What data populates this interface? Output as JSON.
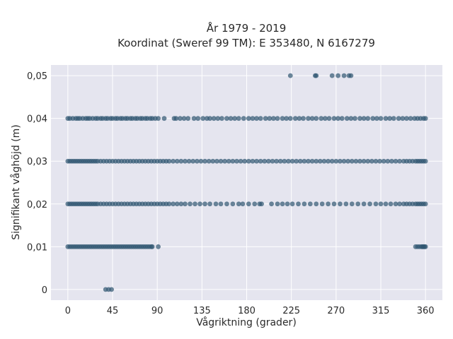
{
  "chart_data": {
    "type": "scatter",
    "title_line1": "År 1979 - 2019",
    "title_line2": "Koordinat (Sweref 99 TM): E 353480, N 6167279",
    "xlabel": "Vågriktning (grader)",
    "ylabel": "Signifikant våghöjd (m)",
    "xlim": [
      -17,
      377
    ],
    "ylim": [
      -0.0025,
      0.0525
    ],
    "xticks": [
      0,
      45,
      90,
      135,
      180,
      225,
      270,
      315,
      360
    ],
    "xtick_labels": [
      "0",
      "45",
      "90",
      "135",
      "180",
      "225",
      "270",
      "315",
      "360"
    ],
    "yticks": [
      0,
      0.01,
      0.02,
      0.03,
      0.04,
      0.05
    ],
    "ytick_labels": [
      "0",
      "0,01",
      "0,02",
      "0,03",
      "0,04",
      "0,05"
    ],
    "grid": true,
    "point_color": "#2f5570",
    "background_color": "#e5e5ef",
    "series": [
      {
        "y": 0.05,
        "x": [
          224,
          249,
          250,
          266,
          272,
          278,
          283,
          285
        ]
      },
      {
        "y": 0.04,
        "x": [
          0,
          2,
          5,
          8,
          10,
          12,
          15,
          18,
          20,
          22,
          25,
          28,
          30,
          33,
          35,
          38,
          40,
          43,
          45,
          48,
          50,
          53,
          55,
          58,
          60,
          63,
          65,
          68,
          70,
          73,
          75,
          78,
          80,
          83,
          85,
          88,
          91,
          97,
          107,
          109,
          113,
          117,
          121,
          127,
          131,
          136,
          140,
          143,
          147,
          151,
          155,
          160,
          164,
          168,
          172,
          177,
          182,
          186,
          190,
          194,
          199,
          203,
          207,
          211,
          216,
          220,
          224,
          229,
          233,
          237,
          242,
          246,
          250,
          255,
          259,
          263,
          268,
          272,
          276,
          281,
          285,
          289,
          294,
          298,
          302,
          307,
          311,
          315,
          320,
          324,
          328,
          333,
          337,
          341,
          345,
          349,
          352,
          355,
          358,
          360
        ]
      },
      {
        "y": 0.03,
        "x": [
          0,
          2,
          4,
          6,
          8,
          10,
          12,
          14,
          16,
          18,
          20,
          22,
          24,
          26,
          28,
          30,
          33,
          36,
          39,
          42,
          45,
          48,
          51,
          54,
          57,
          60,
          63,
          66,
          69,
          72,
          75,
          78,
          81,
          84,
          87,
          90,
          93,
          96,
          99,
          102,
          106,
          110,
          114,
          118,
          122,
          126,
          130,
          134,
          138,
          142,
          146,
          150,
          154,
          158,
          162,
          166,
          170,
          174,
          178,
          182,
          186,
          190,
          194,
          198,
          202,
          206,
          210,
          214,
          218,
          222,
          226,
          230,
          234,
          238,
          242,
          246,
          250,
          254,
          258,
          262,
          266,
          270,
          274,
          278,
          282,
          286,
          290,
          294,
          298,
          302,
          306,
          310,
          314,
          318,
          322,
          326,
          330,
          334,
          338,
          341,
          344,
          347,
          350,
          352,
          354,
          356,
          358,
          360
        ]
      },
      {
        "y": 0.02,
        "x": [
          0,
          2,
          4,
          6,
          8,
          10,
          12,
          14,
          16,
          18,
          20,
          22,
          24,
          26,
          28,
          30,
          33,
          36,
          39,
          42,
          45,
          48,
          51,
          54,
          57,
          60,
          63,
          66,
          69,
          72,
          75,
          78,
          81,
          84,
          87,
          90,
          93,
          96,
          99,
          102,
          106,
          110,
          114,
          118,
          123,
          128,
          133,
          138,
          143,
          149,
          154,
          160,
          166,
          172,
          176,
          182,
          188,
          193,
          195,
          205,
          211,
          216,
          221,
          226,
          232,
          238,
          244,
          250,
          256,
          262,
          268,
          274,
          280,
          286,
          292,
          298,
          304,
          310,
          315,
          320,
          325,
          330,
          334,
          338,
          341,
          344,
          347,
          350,
          352,
          354,
          356,
          358,
          360
        ]
      },
      {
        "y": 0.01,
        "x": [
          0,
          2,
          4,
          6,
          8,
          10,
          12,
          14,
          16,
          18,
          20,
          22,
          24,
          26,
          28,
          30,
          32,
          34,
          36,
          38,
          40,
          42,
          44,
          46,
          48,
          50,
          52,
          54,
          56,
          58,
          60,
          62,
          64,
          66,
          68,
          70,
          72,
          74,
          76,
          78,
          80,
          82,
          84,
          85,
          91,
          350,
          352,
          354,
          356,
          357,
          358,
          359,
          360
        ]
      },
      {
        "y": 0,
        "x": [
          38,
          41,
          44
        ]
      }
    ]
  }
}
